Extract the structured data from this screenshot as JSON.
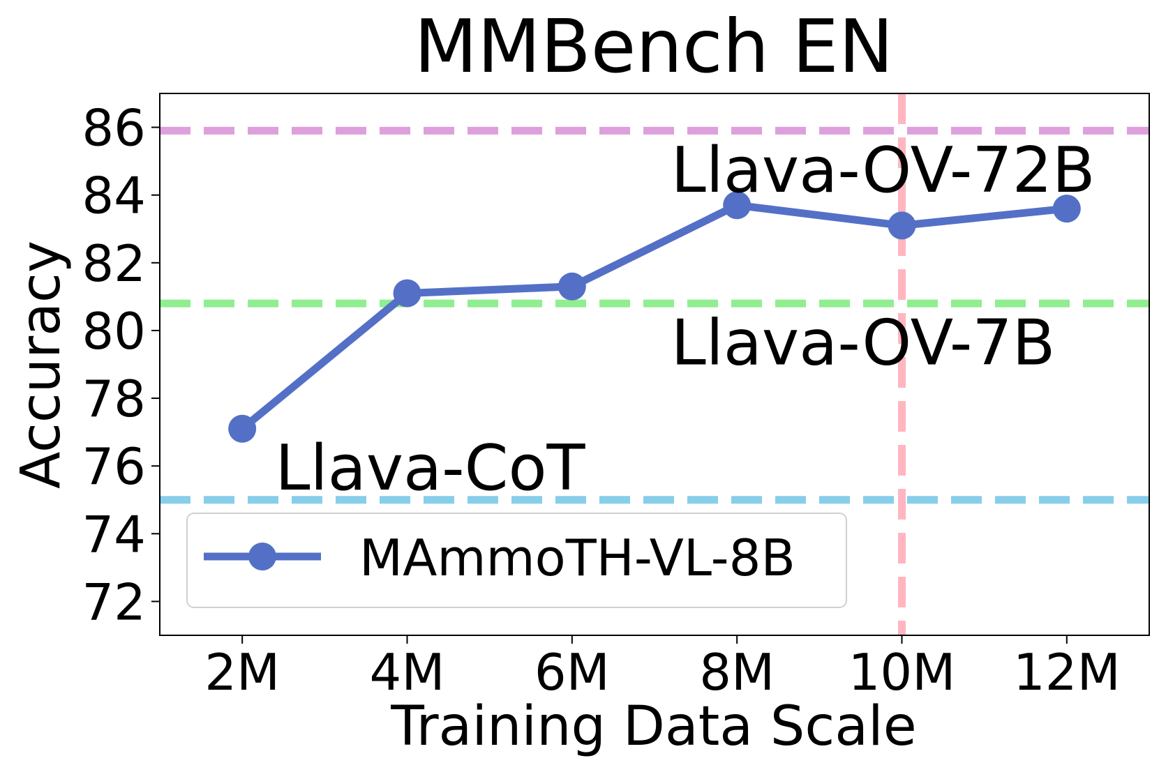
{
  "chart_data": {
    "type": "line",
    "title": "MMBench EN",
    "xlabel": "Training Data Scale",
    "ylabel": "Accuracy",
    "x": [
      2,
      4,
      6,
      8,
      10,
      12
    ],
    "xlim": [
      1,
      13
    ],
    "ylim": [
      71,
      87
    ],
    "x_tick_values": [
      2,
      4,
      6,
      8,
      10,
      12
    ],
    "x_tick_labels": [
      "2M",
      "4M",
      "6M",
      "8M",
      "10M",
      "12M"
    ],
    "y_ticks": [
      72,
      74,
      76,
      78,
      80,
      82,
      84,
      86
    ],
    "grid": false,
    "legend_position": "lower-left",
    "series": [
      {
        "name": "MAmmoTH-VL-8B",
        "values": [
          77.1,
          81.1,
          81.3,
          83.7,
          83.1,
          83.6
        ],
        "color": "#5470C6"
      }
    ],
    "reference_lines": [
      {
        "label": "Llava-OV-72B",
        "value": 85.9,
        "color": "#DDA0DD"
      },
      {
        "label": "Llava-OV-7B",
        "value": 80.8,
        "color": "#90EE90"
      },
      {
        "label": "Llava-CoT",
        "value": 75.0,
        "color": "#87CEEB"
      }
    ],
    "vertical_line": {
      "x": 10,
      "color": "#FFB6C1"
    }
  }
}
